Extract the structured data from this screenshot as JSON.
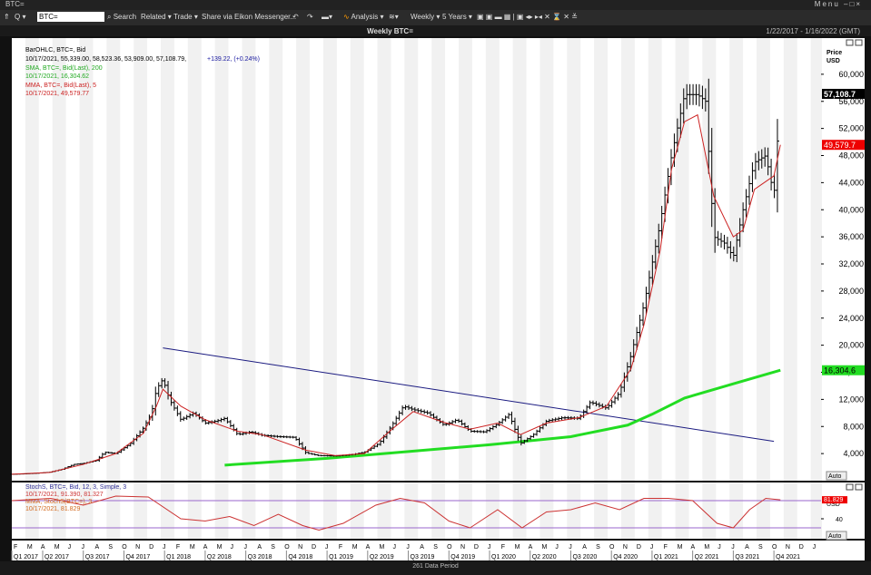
{
  "window": {
    "title": "BTC=",
    "menu_label": "Menu"
  },
  "toolbar": {
    "ric_value": "BTC=",
    "search_label": "Search",
    "related_label": "Related",
    "trade_label": "Trade",
    "share_label": "Share via Eikon Messenger...",
    "analysis_label": "Analysis",
    "interval_label": "Weekly",
    "period_label": "5 Years"
  },
  "header": {
    "title": "Weekly BTC=",
    "date_range": "1/22/2017 - 1/16/2022 (GMT)"
  },
  "footer": {
    "data_period": "261 Data Period"
  },
  "colors": {
    "price": "#000000",
    "sma": "#22dd22",
    "mma": "#cc2222",
    "stoch": "#cc3333",
    "stoch_mma": "#d2691e",
    "trendline": "#1a1a80",
    "level": "#9966cc"
  },
  "chart_data": [
    {
      "type": "ohlc",
      "title": "Weekly BTC=",
      "legend": [
        {
          "text": "BarOHLC, BTC=, Bid",
          "color": "#000000"
        },
        {
          "text": "10/17/2021, 55,339.00, 58,523.36, 53,909.00, 57,108.79,",
          "color": "#000000"
        },
        {
          "text": "+139.22, (+0.24%)",
          "color": "#1a1aa0"
        },
        {
          "text": "SMA, BTC=, Bid(Last), 200",
          "color": "#22aa22"
        },
        {
          "text": "10/17/2021, 16,304.62",
          "color": "#22aa22"
        },
        {
          "text": "MMA, BTC=, Bid(Last), 5",
          "color": "#cc2222"
        },
        {
          "text": "10/17/2021, 49,579.77",
          "color": "#cc2222"
        }
      ],
      "ylabel": "Price",
      "yunit": "USD",
      "ylim": [
        0,
        64000
      ],
      "y_ticks": [
        "4,000",
        "8,000",
        "12,000",
        "16,000",
        "20,000",
        "24,000",
        "28,000",
        "32,000",
        "36,000",
        "40,000",
        "44,000",
        "48,000",
        "52,000",
        "56,000",
        "60,000"
      ],
      "scale_label": "Auto",
      "last_price_label": "57,108.7",
      "mma_last_label": "49,579.7",
      "sma_last_label": "16,304.6",
      "price_close": [
        [
          2017.06,
          950
        ],
        [
          2017.13,
          1000
        ],
        [
          2017.21,
          1100
        ],
        [
          2017.29,
          1250
        ],
        [
          2017.37,
          1700
        ],
        [
          2017.44,
          2400
        ],
        [
          2017.5,
          2550
        ],
        [
          2017.58,
          3000
        ],
        [
          2017.63,
          4200
        ],
        [
          2017.7,
          4000
        ],
        [
          2017.79,
          5500
        ],
        [
          2017.87,
          7800
        ],
        [
          2017.92,
          10000
        ],
        [
          2017.95,
          13500
        ],
        [
          2017.99,
          15000
        ],
        [
          2018.03,
          12000
        ],
        [
          2018.1,
          9000
        ],
        [
          2018.18,
          10000
        ],
        [
          2018.25,
          8500
        ],
        [
          2018.32,
          8800
        ],
        [
          2018.37,
          9200
        ],
        [
          2018.45,
          6800
        ],
        [
          2018.53,
          7200
        ],
        [
          2018.6,
          6700
        ],
        [
          2018.7,
          6500
        ],
        [
          2018.8,
          6400
        ],
        [
          2018.87,
          4100
        ],
        [
          2018.95,
          3700
        ],
        [
          2019.05,
          3650
        ],
        [
          2019.15,
          3850
        ],
        [
          2019.23,
          4200
        ],
        [
          2019.32,
          5500
        ],
        [
          2019.4,
          8200
        ],
        [
          2019.47,
          11000
        ],
        [
          2019.53,
          10500
        ],
        [
          2019.62,
          10000
        ],
        [
          2019.72,
          8200
        ],
        [
          2019.8,
          9000
        ],
        [
          2019.88,
          7300
        ],
        [
          2019.97,
          7200
        ],
        [
          2020.05,
          8400
        ],
        [
          2020.12,
          9800
        ],
        [
          2020.19,
          5500
        ],
        [
          2020.27,
          6800
        ],
        [
          2020.35,
          8800
        ],
        [
          2020.45,
          9300
        ],
        [
          2020.55,
          9200
        ],
        [
          2020.62,
          11600
        ],
        [
          2020.72,
          10700
        ],
        [
          2020.8,
          13000
        ],
        [
          2020.87,
          18500
        ],
        [
          2020.95,
          26000
        ],
        [
          2021.0,
          32000
        ],
        [
          2021.05,
          38000
        ],
        [
          2021.12,
          48000
        ],
        [
          2021.2,
          57000
        ],
        [
          2021.28,
          57000
        ],
        [
          2021.33,
          56000
        ],
        [
          2021.38,
          36000
        ],
        [
          2021.45,
          35000
        ],
        [
          2021.5,
          33000
        ],
        [
          2021.56,
          40000
        ],
        [
          2021.63,
          47000
        ],
        [
          2021.7,
          48000
        ],
        [
          2021.75,
          42000
        ],
        [
          2021.79,
          57108
        ]
      ],
      "sma_200": [
        [
          2018.37,
          2300
        ],
        [
          2019.0,
          3300
        ],
        [
          2019.5,
          4300
        ],
        [
          2020.0,
          5300
        ],
        [
          2020.5,
          6500
        ],
        [
          2020.85,
          8200
        ],
        [
          2021.0,
          9800
        ],
        [
          2021.2,
          12200
        ],
        [
          2021.5,
          14300
        ],
        [
          2021.79,
          16304
        ]
      ],
      "mma_5": [
        [
          2017.06,
          950
        ],
        [
          2017.29,
          1200
        ],
        [
          2017.5,
          2400
        ],
        [
          2017.7,
          4000
        ],
        [
          2017.87,
          7000
        ],
        [
          2017.95,
          11000
        ],
        [
          2017.99,
          13500
        ],
        [
          2018.1,
          11000
        ],
        [
          2018.25,
          9000
        ],
        [
          2018.45,
          7300
        ],
        [
          2018.6,
          6800
        ],
        [
          2018.87,
          4500
        ],
        [
          2019.05,
          3700
        ],
        [
          2019.23,
          4000
        ],
        [
          2019.4,
          7600
        ],
        [
          2019.53,
          10200
        ],
        [
          2019.72,
          8600
        ],
        [
          2019.88,
          7600
        ],
        [
          2020.05,
          8500
        ],
        [
          2020.19,
          6800
        ],
        [
          2020.35,
          8500
        ],
        [
          2020.55,
          9300
        ],
        [
          2020.72,
          11000
        ],
        [
          2020.87,
          16500
        ],
        [
          2020.95,
          23000
        ],
        [
          2021.05,
          34000
        ],
        [
          2021.12,
          46000
        ],
        [
          2021.2,
          53000
        ],
        [
          2021.28,
          54000
        ],
        [
          2021.38,
          42000
        ],
        [
          2021.5,
          36000
        ],
        [
          2021.56,
          37000
        ],
        [
          2021.63,
          43000
        ],
        [
          2021.75,
          45000
        ],
        [
          2021.79,
          49579
        ]
      ],
      "trendline": [
        [
          2017.99,
          19600
        ],
        [
          2021.75,
          5800
        ]
      ]
    },
    {
      "type": "line",
      "title": "StochS, BTC=, Bid, 12, 3, Simple, 3",
      "legend": [
        {
          "text": "StochS, BTC=, Bid,  12, 3, Simple, 3",
          "color": "#333399"
        },
        {
          "text": "10/17/2021, 91.390, 81.327",
          "color": "#cc3333"
        },
        {
          "text": "MMA, StochS(BTC=), 3",
          "color": "#d2691e"
        },
        {
          "text": "10/17/2021, 81.829",
          "color": "#d2691e"
        }
      ],
      "ylim": [
        0,
        100
      ],
      "y_ticks": [
        "40"
      ],
      "yunit": "USD",
      "scale_label": "Auto",
      "last_label": "81.829",
      "levels": [
        80,
        20
      ],
      "stoch": [
        [
          2017.06,
          80
        ],
        [
          2017.3,
          85
        ],
        [
          2017.5,
          70
        ],
        [
          2017.7,
          90
        ],
        [
          2017.9,
          88
        ],
        [
          2018.1,
          40
        ],
        [
          2018.25,
          35
        ],
        [
          2018.4,
          45
        ],
        [
          2018.55,
          25
        ],
        [
          2018.7,
          50
        ],
        [
          2018.85,
          25
        ],
        [
          2018.95,
          15
        ],
        [
          2019.1,
          30
        ],
        [
          2019.3,
          70
        ],
        [
          2019.45,
          85
        ],
        [
          2019.6,
          75
        ],
        [
          2019.75,
          35
        ],
        [
          2019.88,
          20
        ],
        [
          2020.05,
          60
        ],
        [
          2020.2,
          20
        ],
        [
          2020.35,
          55
        ],
        [
          2020.5,
          60
        ],
        [
          2020.65,
          75
        ],
        [
          2020.8,
          60
        ],
        [
          2020.95,
          85
        ],
        [
          2021.1,
          85
        ],
        [
          2021.25,
          80
        ],
        [
          2021.4,
          30
        ],
        [
          2021.5,
          20
        ],
        [
          2021.6,
          60
        ],
        [
          2021.7,
          85
        ],
        [
          2021.79,
          81.8
        ]
      ]
    }
  ],
  "x_axis": {
    "months": [
      "F",
      "M",
      "A",
      "M",
      "J",
      "J",
      "A",
      "S",
      "O",
      "N",
      "D",
      "J",
      "F",
      "M",
      "A",
      "M",
      "J",
      "J",
      "A",
      "S",
      "O",
      "N",
      "D",
      "J",
      "F",
      "M",
      "A",
      "M",
      "J",
      "J",
      "A",
      "S",
      "O",
      "N",
      "D",
      "J",
      "F",
      "M",
      "A",
      "M",
      "J",
      "J",
      "A",
      "S",
      "O",
      "N",
      "D",
      "J",
      "F",
      "M",
      "A",
      "M",
      "J",
      "J",
      "A",
      "S",
      "O",
      "N",
      "D",
      "J"
    ],
    "quarters": [
      "Q1 2017",
      "Q2 2017",
      "Q3 2017",
      "Q4 2017",
      "Q1 2018",
      "Q2 2018",
      "Q3 2018",
      "Q4 2018",
      "Q1 2019",
      "Q2 2019",
      "Q3 2019",
      "Q4 2019",
      "Q1 2020",
      "Q2 2020",
      "Q3 2020",
      "Q4 2020",
      "Q1 2021",
      "Q2 2021",
      "Q3 2021",
      "Q4 2021"
    ]
  }
}
